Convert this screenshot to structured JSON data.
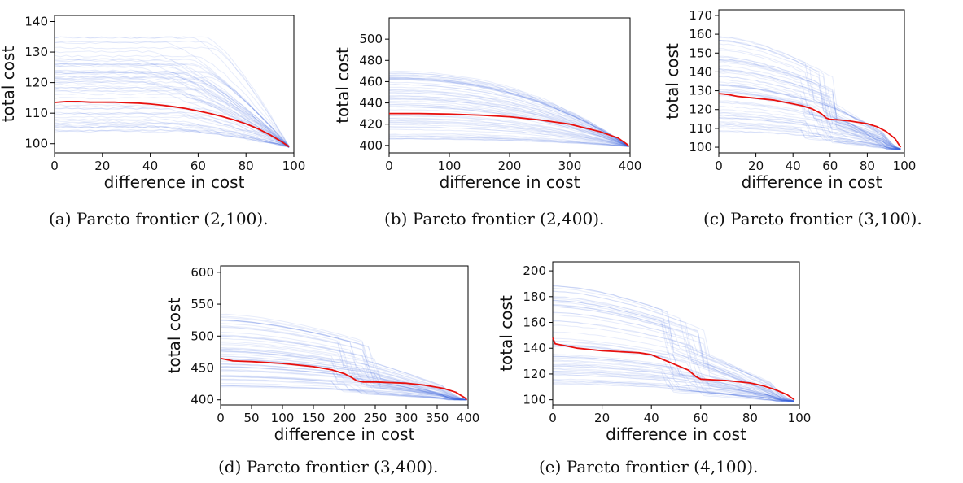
{
  "figure": {
    "captions": [
      "(a) Pareto frontier (2,100).",
      "(b) Pareto frontier (2,400).",
      "(c) Pareto frontier (3,100).",
      "(d) Pareto frontier (3,400).",
      "(e) Pareto frontier (4,100)."
    ],
    "colors": {
      "background_lines": "#3b5fe0",
      "mean_line": "#e8110f"
    }
  },
  "chart_data": [
    {
      "type": "line",
      "xlabel": "difference in cost",
      "ylabel": "total cost",
      "xlim": [
        0,
        100
      ],
      "ylim": [
        97,
        142
      ],
      "xticks": [
        0,
        20,
        40,
        60,
        80,
        100
      ],
      "yticks": [
        100,
        110,
        120,
        130,
        140
      ],
      "series": [
        {
          "role": "mean",
          "color": "#e8110f",
          "x": [
            0,
            5,
            10,
            15,
            20,
            25,
            30,
            35,
            40,
            45,
            50,
            55,
            60,
            65,
            70,
            75,
            80,
            85,
            90,
            95,
            98
          ],
          "y": [
            113.5,
            113.8,
            113.8,
            113.6,
            113.6,
            113.6,
            113.4,
            113.3,
            113.0,
            112.6,
            112.1,
            111.5,
            110.7,
            109.9,
            108.9,
            107.8,
            106.5,
            104.9,
            102.9,
            100.6,
            99.0
          ]
        }
      ],
      "background": {
        "count": 60,
        "spread": [
          104,
          135
        ],
        "shape": "flat-then-descend",
        "end": [
          98,
          99
        ]
      }
    },
    {
      "type": "line",
      "xlabel": "difference in cost",
      "ylabel": "total cost",
      "xlim": [
        0,
        400
      ],
      "ylim": [
        393,
        520
      ],
      "xticks": [
        0,
        100,
        200,
        300,
        400
      ],
      "yticks": [
        400,
        420,
        440,
        460,
        480,
        500
      ],
      "series": [
        {
          "role": "mean",
          "color": "#e8110f",
          "x": [
            0,
            50,
            100,
            150,
            200,
            250,
            300,
            350,
            380,
            395,
            398
          ],
          "y": [
            430,
            430,
            429.5,
            428.5,
            427,
            424,
            420,
            413,
            407,
            401,
            399
          ]
        }
      ],
      "background": {
        "count": 60,
        "spread": [
          405,
          470
        ],
        "shape": "convex-descend",
        "end": [
          398,
          399
        ]
      }
    },
    {
      "type": "line",
      "xlabel": "difference in cost",
      "ylabel": "total cost",
      "xlim": [
        0,
        100
      ],
      "ylim": [
        97,
        173
      ],
      "xticks": [
        0,
        20,
        40,
        60,
        80,
        100
      ],
      "yticks": [
        100,
        110,
        120,
        130,
        140,
        150,
        160,
        170
      ],
      "series": [
        {
          "role": "mean",
          "color": "#e8110f",
          "x": [
            0,
            5,
            10,
            20,
            30,
            40,
            45,
            50,
            55,
            58,
            60,
            65,
            70,
            80,
            85,
            90,
            95,
            98
          ],
          "y": [
            128.5,
            128,
            127,
            126,
            125,
            123,
            122,
            120.5,
            118,
            115.5,
            114.8,
            114.5,
            114,
            112.5,
            111,
            108.5,
            104.5,
            100
          ]
        }
      ],
      "background": {
        "count": 60,
        "spread": [
          108,
          160
        ],
        "shape": "step-descend",
        "end": [
          98,
          99
        ]
      }
    },
    {
      "type": "line",
      "xlabel": "difference in cost",
      "ylabel": "total cost",
      "xlim": [
        0,
        400
      ],
      "ylim": [
        392,
        610
      ],
      "xticks": [
        0,
        50,
        100,
        150,
        200,
        250,
        300,
        350,
        400
      ],
      "yticks": [
        400,
        450,
        500,
        550,
        600
      ],
      "series": [
        {
          "role": "mean",
          "color": "#e8110f",
          "x": [
            0,
            20,
            50,
            100,
            150,
            180,
            200,
            210,
            220,
            230,
            250,
            300,
            330,
            360,
            380,
            395,
            398
          ],
          "y": [
            465,
            461,
            460,
            457,
            452,
            447,
            441,
            436,
            430,
            428,
            428,
            426,
            423,
            418,
            412,
            403,
            400
          ]
        }
      ],
      "background": {
        "count": 60,
        "spread": [
          420,
          540
        ],
        "shape": "step-descend",
        "end": [
          398,
          400
        ]
      }
    },
    {
      "type": "line",
      "xlabel": "difference in cost",
      "ylabel": "total cost",
      "xlim": [
        0,
        100
      ],
      "ylim": [
        96,
        207
      ],
      "xticks": [
        0,
        20,
        40,
        60,
        80,
        100
      ],
      "yticks": [
        100,
        120,
        140,
        160,
        180,
        200
      ],
      "series": [
        {
          "role": "mean",
          "color": "#e8110f",
          "x": [
            0,
            1,
            5,
            10,
            20,
            30,
            35,
            40,
            45,
            50,
            55,
            58,
            60,
            65,
            70,
            80,
            85,
            90,
            95,
            98
          ],
          "y": [
            148,
            143.5,
            142,
            140,
            138,
            137,
            136.5,
            135,
            131,
            127,
            123,
            118,
            116,
            115.5,
            115,
            113,
            111,
            108,
            104,
            100
          ]
        }
      ],
      "background": {
        "count": 60,
        "spread": [
          112,
          190
        ],
        "shape": "step-descend",
        "end": [
          98,
          99
        ]
      }
    }
  ]
}
